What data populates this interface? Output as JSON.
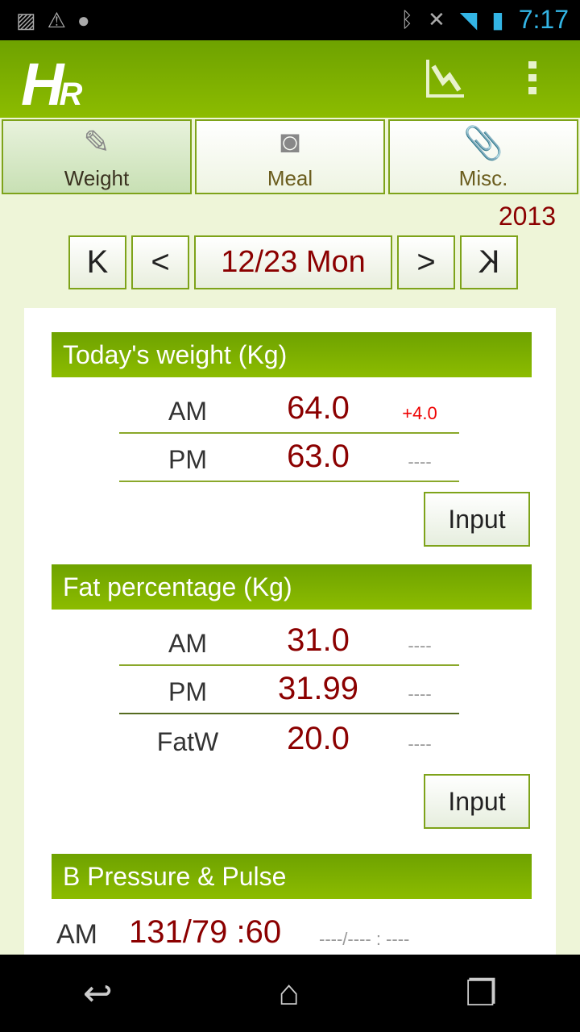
{
  "status_bar": {
    "time": "7:17",
    "icons": [
      "image-icon",
      "warning-icon",
      "android-icon",
      "bluetooth-icon",
      "mute-icon",
      "wifi-icon",
      "signal-icon",
      "battery-charging-icon"
    ]
  },
  "app_bar": {
    "logo": "HR",
    "actions": [
      "chart-icon",
      "overflow-menu-icon"
    ]
  },
  "tabs": [
    {
      "label": "Weight",
      "icon": "pencil-icon",
      "selected": true
    },
    {
      "label": "Meal",
      "icon": "camera-icon"
    },
    {
      "label": "Misc.",
      "icon": "paperclip-icon"
    }
  ],
  "year": "2013",
  "date_nav": {
    "first": "K",
    "prev": "<",
    "date": "12/23 Mon",
    "next": ">",
    "last": "K"
  },
  "weight": {
    "title": "Today's weight (Kg)",
    "rows": [
      {
        "label": "AM",
        "value": "64.0",
        "diff": "+4.0"
      },
      {
        "label": "PM",
        "value": "63.0",
        "diff": "----"
      }
    ],
    "input_label": "Input"
  },
  "fat": {
    "title": "Fat percentage (Kg)",
    "rows": [
      {
        "label": "AM",
        "value": "31.0",
        "diff": "----"
      },
      {
        "label": "PM",
        "value": "31.99",
        "diff": "----"
      },
      {
        "label": "FatW",
        "value": "20.0",
        "diff": "----"
      }
    ],
    "input_label": "Input"
  },
  "bp": {
    "title": "B Pressure & Pulse",
    "am_label": "AM",
    "am_value": "131/79 :60",
    "am_diff": "----/---- : ----"
  },
  "colors": {
    "accent": "#8cbc00",
    "value": "#8b0000",
    "diff_up": "#ee0000"
  }
}
